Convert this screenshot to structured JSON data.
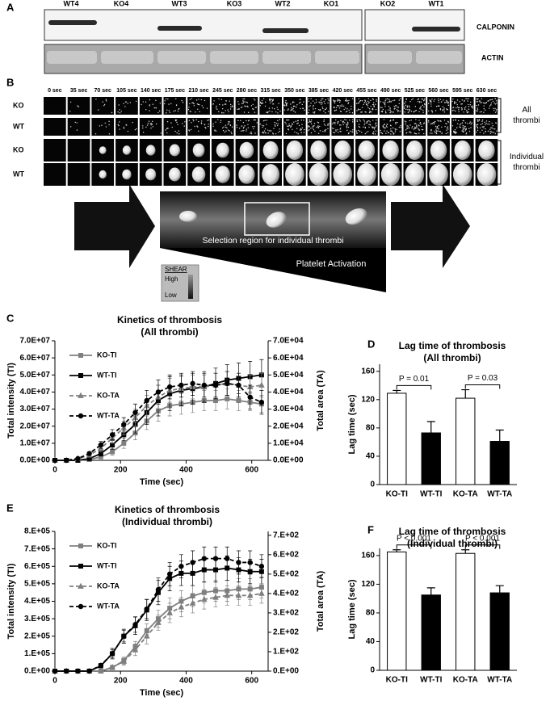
{
  "blot": {
    "panel": "A",
    "lanes": [
      "WT4",
      "KO4",
      "WT3",
      "KO3",
      "WT2",
      "KO1",
      "KO2",
      "WT1"
    ],
    "rows": [
      "CALPONIN",
      "ACTIN"
    ]
  },
  "imaging": {
    "panel": "B",
    "times": [
      "0 sec",
      "35 sec",
      "70 sec",
      "105 sec",
      "140 sec",
      "175 sec",
      "210 sec",
      "245 sec",
      "280 sec",
      "315 sec",
      "350 sec",
      "385 sec",
      "420 sec",
      "455 sec",
      "490 sec",
      "525 sec",
      "560 sec",
      "595 sec",
      "630 sec"
    ],
    "rows": [
      "KO",
      "WT",
      "KO",
      "WT"
    ],
    "groups": [
      [
        "All",
        "thrombi"
      ],
      [
        "Individual",
        "thrombi"
      ]
    ],
    "selection": "Selection region for individual thrombi",
    "activation": "Platelet Activation",
    "shear": {
      "title": "SHEAR",
      "high": "High",
      "low": "Low"
    }
  },
  "chart_data": [
    {
      "type": "line",
      "panel": "C",
      "title": "Kinetics of thrombosis",
      "subtitle": "(All thrombi)",
      "xlabel": "Time (sec)",
      "ylabel": "Total intensity (TI)",
      "y2label": "Total area (TA)",
      "x": [
        0,
        35,
        70,
        105,
        140,
        175,
        210,
        245,
        280,
        315,
        350,
        385,
        420,
        455,
        490,
        525,
        560,
        595,
        630
      ],
      "xlim": [
        0,
        650
      ],
      "xticks": [
        0,
        200,
        400,
        600
      ],
      "ylim": [
        0,
        70000000
      ],
      "yticks": [
        {
          "value": 0,
          "label": "0.0E+00"
        },
        {
          "value": 10000000,
          "label": "1.0E+07"
        },
        {
          "value": 20000000,
          "label": "2.0E+07"
        },
        {
          "value": 30000000,
          "label": "3.0E+07"
        },
        {
          "value": 40000000,
          "label": "4.0E+07"
        },
        {
          "value": 50000000,
          "label": "5.0E+07"
        },
        {
          "value": 60000000,
          "label": "6.0E+07"
        },
        {
          "value": 70000000,
          "label": "7.0E+07"
        }
      ],
      "y2lim": [
        0,
        70000
      ],
      "y2ticks": [
        {
          "value": 0,
          "label": "0.0E+00"
        },
        {
          "value": 10000,
          "label": "1.0E+04"
        },
        {
          "value": 20000,
          "label": "2.0E+04"
        },
        {
          "value": 30000,
          "label": "3.0E+04"
        },
        {
          "value": 40000,
          "label": "4.0E+04"
        },
        {
          "value": 50000,
          "label": "5.0E+04"
        },
        {
          "value": 60000,
          "label": "6.0E+04"
        },
        {
          "value": 70000,
          "label": "7.0E+04"
        }
      ],
      "legend": "upper left",
      "series": [
        {
          "name": "KO-TI",
          "color": "#7f7f7f",
          "dash": false,
          "marker": "square",
          "values": [
            0,
            0,
            0,
            500000,
            2000000,
            5000000,
            10000000,
            16000000,
            23000000,
            29000000,
            32000000,
            33000000,
            34000000,
            35000000,
            35000000,
            36000000,
            35000000,
            34000000,
            33000000
          ],
          "errors": [
            0,
            0,
            0,
            200000,
            1000000,
            2000000,
            3000000,
            4000000,
            5000000,
            6000000,
            6000000,
            6000000,
            6000000,
            6000000,
            6000000,
            6000000,
            6000000,
            5000000,
            5000000
          ]
        },
        {
          "name": "WT-TI",
          "color": "#000000",
          "dash": false,
          "marker": "square",
          "values": [
            0,
            0,
            0,
            1000000,
            4000000,
            9000000,
            15000000,
            21000000,
            28000000,
            35000000,
            39000000,
            41000000,
            42000000,
            43000000,
            45000000,
            47000000,
            48000000,
            49000000,
            50000000
          ],
          "errors": [
            0,
            0,
            0,
            500000,
            1500000,
            2500000,
            3500000,
            5000000,
            7000000,
            9000000,
            10000000,
            9000000,
            9000000,
            9000000,
            9000000,
            9000000,
            9000000,
            9000000,
            9000000
          ]
        },
        {
          "name": "KO-TA",
          "color": "#7f7f7f",
          "dash": true,
          "marker": "triangle",
          "axis": "y2",
          "values": [
            0,
            0,
            1000,
            3000,
            7000,
            13000,
            19000,
            25000,
            32000,
            37000,
            41000,
            42000,
            43000,
            43000,
            44000,
            45000,
            44000,
            43000,
            44000
          ],
          "errors": [
            0,
            0,
            500,
            1000,
            2000,
            3000,
            4000,
            5000,
            6000,
            7000,
            7000,
            7000,
            7000,
            7000,
            7000,
            7000,
            7000,
            7000,
            7000
          ]
        },
        {
          "name": "WT-TA",
          "color": "#000000",
          "dash": true,
          "marker": "circle",
          "axis": "y2",
          "values": [
            0,
            0,
            1000,
            4000,
            9000,
            15000,
            21000,
            28000,
            35000,
            40000,
            43000,
            44000,
            45000,
            44000,
            44000,
            45000,
            44000,
            37000,
            34000
          ],
          "errors": [
            0,
            0,
            500,
            1000,
            2000,
            3000,
            4000,
            5000,
            6000,
            7000,
            7000,
            7000,
            7000,
            7000,
            7000,
            7000,
            7000,
            7000,
            7000
          ]
        }
      ]
    },
    {
      "type": "bar",
      "panel": "D",
      "title": "Lag time of thrombosis",
      "subtitle": "(All thrombi)",
      "ylabel": "Lag time (sec)",
      "categories": [
        "KO-TI",
        "WT-TI",
        "KO-TA",
        "WT-TA"
      ],
      "values": [
        129,
        73,
        122,
        61
      ],
      "errors": [
        4,
        16,
        12,
        16
      ],
      "colors": [
        "#ffffff",
        "#000000",
        "#ffffff",
        "#000000"
      ],
      "ylim": [
        0,
        170
      ],
      "yticks": [
        0,
        40,
        80,
        120,
        160
      ],
      "annotations": [
        "P = 0.01",
        "P = 0.03"
      ]
    },
    {
      "type": "line",
      "panel": "E",
      "title": "Kinetics of thrombosis",
      "subtitle": "(Individual thrombi)",
      "xlabel": "Time (sec)",
      "ylabel": "Total intensity (TI)",
      "y2label": "Total area (TA)",
      "x": [
        0,
        35,
        70,
        105,
        140,
        175,
        210,
        245,
        280,
        315,
        350,
        385,
        420,
        455,
        490,
        525,
        560,
        595,
        630
      ],
      "xlim": [
        0,
        650
      ],
      "xticks": [
        0,
        200,
        400,
        600
      ],
      "ylim": [
        0,
        800000
      ],
      "yticks": [
        {
          "value": 0,
          "label": "0.E+00"
        },
        {
          "value": 100000,
          "label": "1.E+05"
        },
        {
          "value": 200000,
          "label": "2.E+05"
        },
        {
          "value": 300000,
          "label": "3.E+05"
        },
        {
          "value": 400000,
          "label": "4.E+05"
        },
        {
          "value": 500000,
          "label": "5.E+05"
        },
        {
          "value": 600000,
          "label": "6.E+05"
        },
        {
          "value": 700000,
          "label": "7.E+05"
        },
        {
          "value": 800000,
          "label": "8.E+05"
        }
      ],
      "y2lim": [
        0,
        720
      ],
      "y2ticks": [
        {
          "value": 0,
          "label": "0.E+00"
        },
        {
          "value": 100,
          "label": "1.E+02"
        },
        {
          "value": 200,
          "label": "2.E+02"
        },
        {
          "value": 300,
          "label": "3.E+02"
        },
        {
          "value": 400,
          "label": "4.E+02"
        },
        {
          "value": 500,
          "label": "5.E+02"
        },
        {
          "value": 600,
          "label": "6.E+02"
        },
        {
          "value": 700,
          "label": "7.E+02"
        }
      ],
      "legend": "upper left",
      "series": [
        {
          "name": "KO-TI",
          "color": "#7f7f7f",
          "dash": false,
          "marker": "square",
          "values": [
            0,
            0,
            0,
            0,
            0,
            20000,
            60000,
            140000,
            230000,
            300000,
            360000,
            400000,
            430000,
            450000,
            460000,
            460000,
            470000,
            470000,
            480000
          ],
          "errors": [
            0,
            0,
            0,
            0,
            0,
            10000,
            20000,
            30000,
            40000,
            50000,
            60000,
            60000,
            60000,
            60000,
            60000,
            60000,
            60000,
            60000,
            60000
          ]
        },
        {
          "name": "WT-TI",
          "color": "#000000",
          "dash": false,
          "marker": "square",
          "values": [
            0,
            0,
            0,
            0,
            30000,
            100000,
            200000,
            260000,
            350000,
            450000,
            530000,
            560000,
            560000,
            580000,
            580000,
            590000,
            580000,
            570000,
            570000
          ],
          "errors": [
            0,
            0,
            0,
            0,
            10000,
            30000,
            40000,
            50000,
            60000,
            70000,
            70000,
            70000,
            70000,
            70000,
            70000,
            70000,
            70000,
            70000,
            70000
          ]
        },
        {
          "name": "KO-TA",
          "color": "#7f7f7f",
          "dash": true,
          "marker": "triangle",
          "axis": "y2",
          "values": [
            0,
            0,
            0,
            0,
            0,
            20,
            50,
            110,
            180,
            250,
            300,
            330,
            350,
            370,
            380,
            390,
            390,
            390,
            400
          ],
          "errors": [
            0,
            0,
            0,
            0,
            0,
            10,
            20,
            30,
            40,
            40,
            50,
            50,
            50,
            50,
            50,
            50,
            50,
            50,
            50
          ]
        },
        {
          "name": "WT-TA",
          "color": "#000000",
          "dash": true,
          "marker": "circle",
          "axis": "y2",
          "values": [
            0,
            0,
            0,
            0,
            30,
            90,
            180,
            240,
            320,
            420,
            500,
            540,
            560,
            580,
            580,
            580,
            560,
            560,
            540
          ],
          "errors": [
            0,
            0,
            0,
            0,
            10,
            20,
            30,
            40,
            50,
            60,
            60,
            60,
            60,
            60,
            60,
            60,
            60,
            60,
            60
          ]
        }
      ]
    },
    {
      "type": "bar",
      "panel": "F",
      "title": "Lag time of thrombosis",
      "subtitle": "(Individual thrombi)",
      "ylabel": "Lag time (sec)",
      "categories": [
        "KO-TI",
        "WT-TI",
        "KO-TA",
        "WT-TA"
      ],
      "values": [
        165,
        105,
        163,
        108
      ],
      "errors": [
        3,
        10,
        5,
        10
      ],
      "colors": [
        "#ffffff",
        "#000000",
        "#ffffff",
        "#000000"
      ],
      "ylim": [
        0,
        170
      ],
      "yticks": [
        0,
        40,
        80,
        120,
        160
      ],
      "annotations": [
        "P < 0.001",
        "P < 0.001"
      ]
    }
  ]
}
